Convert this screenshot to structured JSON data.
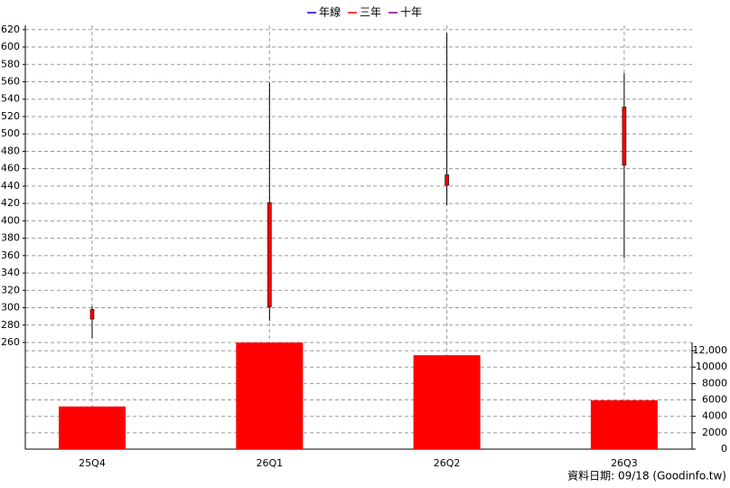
{
  "chart_data": {
    "type": "candlestick",
    "legend": [
      {
        "name": "年線",
        "color": "#0000ff"
      },
      {
        "name": "三年",
        "color": "#ff0000"
      },
      {
        "name": "十年",
        "color": "#800080"
      }
    ],
    "categories": [
      "25Q4",
      "26Q1",
      "26Q2",
      "26Q3"
    ],
    "open": [
      287,
      301,
      441,
      464
    ],
    "high": [
      302,
      559,
      616,
      570
    ],
    "low": [
      265,
      285,
      418,
      357
    ],
    "close": [
      298,
      421,
      453,
      531
    ],
    "color": "#ff0000",
    "ylim": [
      260,
      625
    ],
    "yticks": [
      260,
      280,
      300,
      320,
      340,
      360,
      380,
      400,
      420,
      440,
      460,
      480,
      500,
      520,
      540,
      560,
      580,
      600,
      620
    ],
    "grid": true,
    "volume": {
      "type": "bar",
      "values": [
        5200,
        13000,
        11450,
        5950
      ],
      "color": "#ff0000",
      "ylim": [
        0,
        13000
      ],
      "yticks": [
        0,
        2000,
        4000,
        6000,
        8000,
        10000,
        {
          "value": 12000,
          "label": "12,000"
        }
      ]
    },
    "source": "資料日期: 09/18  (Goodinfo.tw)"
  }
}
